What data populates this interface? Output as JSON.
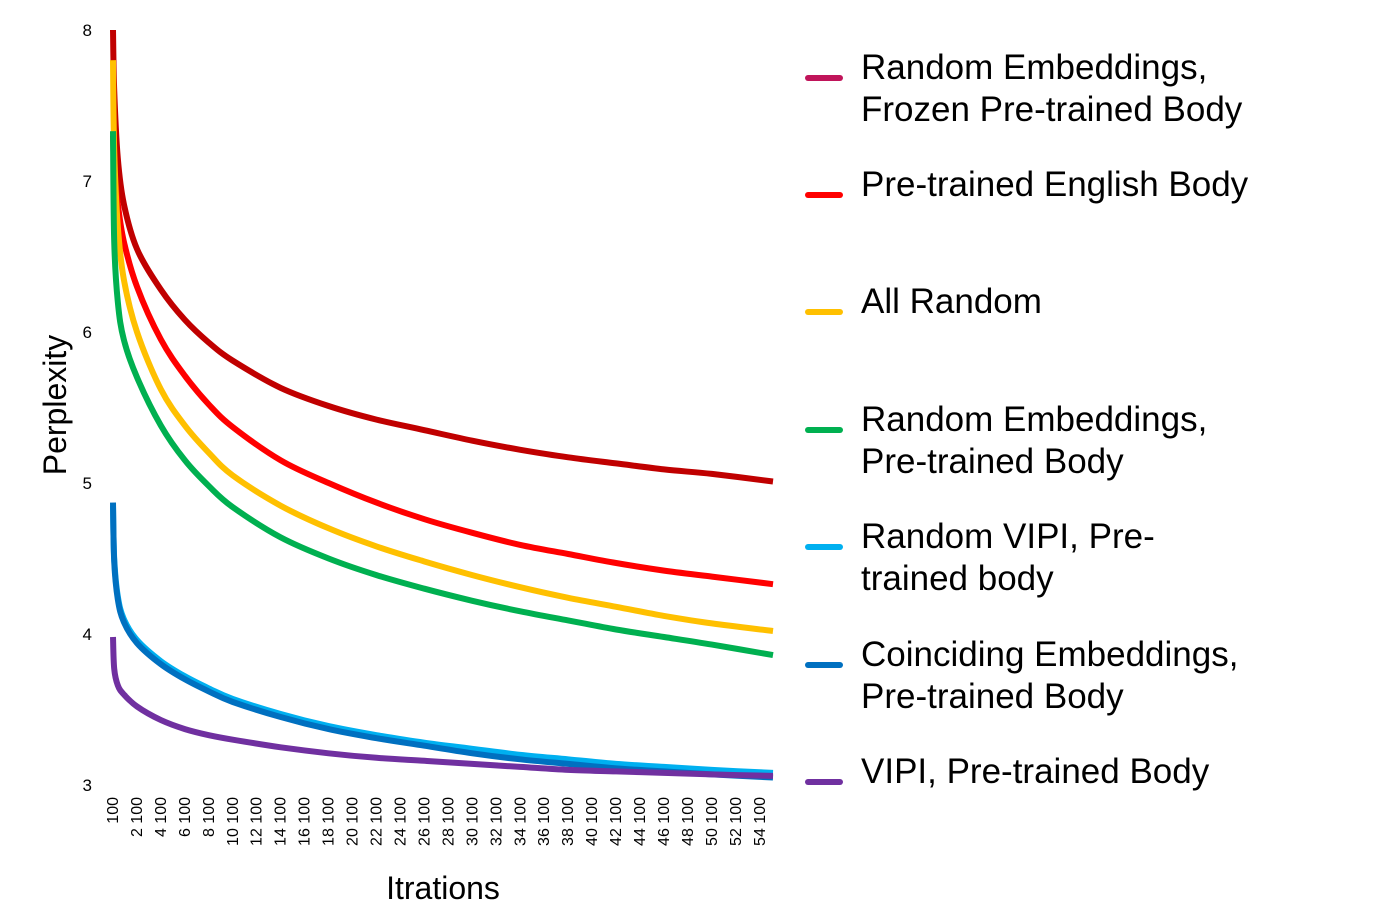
{
  "chart_data": {
    "type": "line",
    "title": "",
    "xlabel": "Itrations",
    "ylabel": "Perplexity",
    "xlim": [
      100,
      55200
    ],
    "ylim": [
      3,
      8
    ],
    "yticks": [
      "3",
      "4",
      "5",
      "6",
      "7",
      "8"
    ],
    "xtick_labels": [
      "100",
      "2 100",
      "4 100",
      "6 100",
      "8 100",
      "10 100",
      "12 100",
      "14 100",
      "16 100",
      "18 100",
      "20 100",
      "22 100",
      "24 100",
      "26 100",
      "28 100",
      "30 100",
      "32 100",
      "34 100",
      "36 100",
      "38 100",
      "40 100",
      "42 100",
      "44 100",
      "46 100",
      "48 100",
      "50 100",
      "52 100",
      "54 100"
    ],
    "xtick_values": [
      100,
      2100,
      4100,
      6100,
      8100,
      10100,
      12100,
      14100,
      16100,
      18100,
      20100,
      22100,
      24100,
      26100,
      28100,
      30100,
      32100,
      34100,
      36100,
      38100,
      40100,
      42100,
      44100,
      46100,
      48100,
      50100,
      52100,
      54100
    ],
    "grid": false,
    "legend_position": "right",
    "x": [
      100,
      200,
      500,
      1000,
      2100,
      4100,
      6100,
      8100,
      10100,
      14100,
      18100,
      22100,
      26100,
      30100,
      34100,
      38100,
      42100,
      46100,
      50100,
      55200
    ],
    "series": [
      {
        "name": "Random Embeddings, Frozen Pre-trained Body",
        "color": "#c00000",
        "values": [
          8.0,
          7.6,
          7.15,
          6.85,
          6.55,
          6.28,
          6.08,
          5.93,
          5.81,
          5.63,
          5.51,
          5.42,
          5.35,
          5.28,
          5.22,
          5.17,
          5.13,
          5.09,
          5.06,
          5.01
        ]
      },
      {
        "name": "Pre-trained English Body",
        "color": "#ff0000",
        "values": [
          7.3,
          7.1,
          6.85,
          6.6,
          6.3,
          5.95,
          5.71,
          5.52,
          5.37,
          5.15,
          5.0,
          4.87,
          4.76,
          4.67,
          4.59,
          4.53,
          4.47,
          4.42,
          4.38,
          4.33
        ]
      },
      {
        "name": "All Random",
        "color": "#ffc000",
        "values": [
          7.8,
          7.2,
          6.7,
          6.35,
          6.0,
          5.62,
          5.38,
          5.2,
          5.05,
          4.85,
          4.7,
          4.58,
          4.48,
          4.39,
          4.31,
          4.24,
          4.18,
          4.12,
          4.07,
          4.02
        ]
      },
      {
        "name": "Random Embeddings, Pre-trained Body",
        "color": "#00b050",
        "values": [
          7.33,
          6.6,
          6.2,
          5.95,
          5.7,
          5.38,
          5.15,
          4.98,
          4.84,
          4.64,
          4.5,
          4.39,
          4.3,
          4.22,
          4.15,
          4.09,
          4.03,
          3.98,
          3.93,
          3.86
        ]
      },
      {
        "name": "Random VIPI, Pre-trained body",
        "color": "#00b0f0",
        "values": [
          4.85,
          4.5,
          4.25,
          4.1,
          3.96,
          3.82,
          3.72,
          3.64,
          3.57,
          3.47,
          3.39,
          3.33,
          3.28,
          3.24,
          3.2,
          3.17,
          3.14,
          3.12,
          3.1,
          3.08
        ]
      },
      {
        "name": "Coinciding Embeddings, Pre-trained Body",
        "color": "#0070c0",
        "values": [
          4.87,
          4.48,
          4.23,
          4.08,
          3.94,
          3.8,
          3.7,
          3.62,
          3.55,
          3.45,
          3.37,
          3.31,
          3.26,
          3.21,
          3.17,
          3.14,
          3.11,
          3.09,
          3.07,
          3.05
        ]
      },
      {
        "name": "VIPI, Pre-trained Body",
        "color": "#7030a0",
        "values": [
          3.98,
          3.77,
          3.66,
          3.6,
          3.52,
          3.43,
          3.37,
          3.33,
          3.3,
          3.25,
          3.21,
          3.18,
          3.16,
          3.14,
          3.12,
          3.1,
          3.09,
          3.08,
          3.07,
          3.06
        ]
      }
    ],
    "legend": [
      {
        "lines": [
          "Random Embeddings,",
          "Frozen Pre-trained Body"
        ],
        "color": "#c0145a"
      },
      {
        "lines": [
          "Pre-trained English Body"
        ],
        "color": "#ff0000"
      },
      {
        "lines": [
          "All Random"
        ],
        "color": "#ffc000"
      },
      {
        "lines": [
          "Random Embeddings,",
          "Pre-trained Body"
        ],
        "color": "#00b050"
      },
      {
        "lines": [
          "Random VIPI, Pre-",
          "trained body"
        ],
        "color": "#00b0f0"
      },
      {
        "lines": [
          "Coinciding Embeddings,",
          "Pre-trained Body"
        ],
        "color": "#0070c0"
      },
      {
        "lines": [
          "VIPI, Pre-trained Body"
        ],
        "color": "#7030a0"
      }
    ]
  }
}
